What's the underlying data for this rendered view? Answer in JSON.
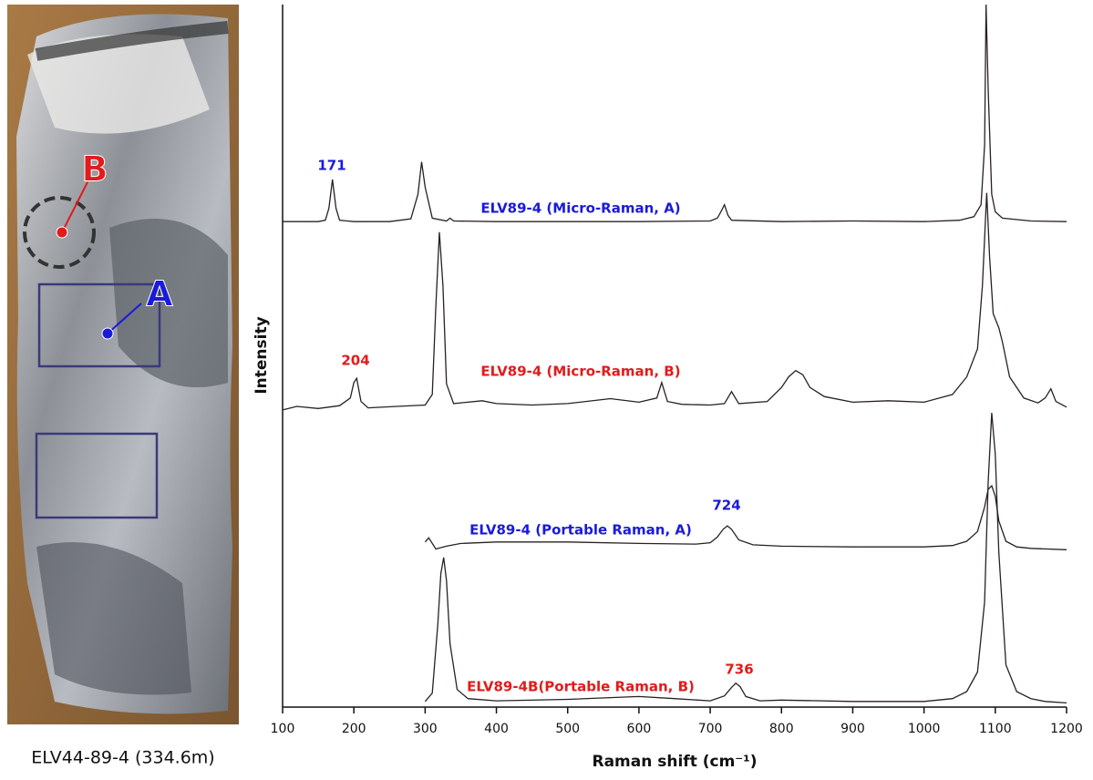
{
  "photo": {
    "caption": "ELV44-89-4 (334.6m)",
    "markers": [
      "A",
      "B"
    ]
  },
  "chart_data": {
    "type": "line",
    "xlabel": "Raman shift (cm⁻¹)",
    "ylabel": "Intensity",
    "xlim": [
      100,
      1200
    ],
    "xticks": [
      100,
      200,
      300,
      400,
      500,
      600,
      700,
      800,
      900,
      1000,
      1100,
      1200
    ],
    "ylim": [
      0,
      100
    ],
    "series": [
      {
        "name": "ELV89-4 (Micro-Raman, A)",
        "color": "#2a2020",
        "label_color": "#1a1adb",
        "x": [
          100,
          150,
          160,
          165,
          170,
          175,
          180,
          200,
          250,
          280,
          290,
          295,
          300,
          310,
          330,
          335,
          340,
          400,
          500,
          600,
          700,
          710,
          715,
          720,
          725,
          730,
          800,
          900,
          1000,
          1050,
          1070,
          1080,
          1085,
          1087,
          1090,
          1095,
          1100,
          1110,
          1150,
          1200
        ],
        "values": [
          69.1,
          69.1,
          69.3,
          71,
          75.1,
          71,
          69.3,
          69.1,
          69.1,
          69.5,
          73,
          77.6,
          74,
          69.6,
          69.2,
          69.6,
          69.2,
          69.1,
          69.1,
          69.1,
          69.2,
          69.6,
          70.5,
          71.5,
          70,
          69.3,
          69.1,
          69.2,
          69.1,
          69.3,
          69.8,
          71.5,
          80,
          100,
          88,
          73,
          70.5,
          69.6,
          69.2,
          69.1
        ]
      },
      {
        "name": "ELV89-4 (Micro-Raman, B)",
        "color": "#2a2020",
        "label_color": "#e21b1b",
        "x": [
          100,
          120,
          150,
          180,
          195,
          200,
          204,
          210,
          220,
          260,
          300,
          310,
          315,
          320,
          325,
          330,
          340,
          380,
          400,
          450,
          500,
          560,
          600,
          625,
          632,
          640,
          660,
          700,
          720,
          730,
          740,
          780,
          800,
          810,
          820,
          830,
          840,
          860,
          900,
          950,
          1000,
          1040,
          1060,
          1075,
          1082,
          1088,
          1092,
          1097,
          1105,
          1110,
          1120,
          1140,
          1160,
          1170,
          1178,
          1185,
          1200
        ],
        "values": [
          42.3,
          42.8,
          42.5,
          42.9,
          44,
          46.2,
          46.8,
          43.5,
          42.6,
          42.8,
          43,
          44.5,
          57,
          67.6,
          60,
          46,
          43.2,
          43.6,
          43.2,
          43,
          43.2,
          43.9,
          43.4,
          44,
          46.2,
          43.5,
          43.1,
          43,
          43.2,
          44.9,
          43.2,
          43.5,
          45.5,
          47,
          47.9,
          47.3,
          45.5,
          44.2,
          43.4,
          43.6,
          43.4,
          44.5,
          47,
          51,
          60,
          73.2,
          64,
          56,
          54,
          52,
          47,
          44,
          43.3,
          44,
          45.3,
          43.5,
          42.7
        ]
      },
      {
        "name": "ELV89-4 (Portable Raman, A)",
        "color": "#2a2020",
        "label_color": "#1a1adb",
        "x": [
          300,
          305,
          315,
          330,
          350,
          400,
          500,
          600,
          680,
          700,
          710,
          718,
          724,
          730,
          740,
          760,
          800,
          900,
          1000,
          1040,
          1060,
          1075,
          1085,
          1090,
          1095,
          1100,
          1105,
          1115,
          1130,
          1150,
          1200
        ],
        "values": [
          23.5,
          24.1,
          22.5,
          22.9,
          23.3,
          23.5,
          23.5,
          23.3,
          23.2,
          23.4,
          24.2,
          25.3,
          25.8,
          25.3,
          23.8,
          23.1,
          22.9,
          22.8,
          22.8,
          23,
          23.6,
          25,
          28.5,
          31,
          31.5,
          30,
          26.5,
          23.6,
          22.8,
          22.6,
          22.4
        ]
      },
      {
        "name": "ELV89-4B(Portable Raman, B)",
        "color": "#2a2020",
        "label_color": "#e21b1b",
        "x": [
          300,
          310,
          318,
          322,
          326,
          330,
          335,
          345,
          360,
          400,
          500,
          600,
          650,
          700,
          720,
          730,
          736,
          742,
          750,
          770,
          800,
          900,
          1000,
          1040,
          1060,
          1075,
          1085,
          1090,
          1095,
          1100,
          1105,
          1115,
          1130,
          1150,
          1170,
          1200
        ],
        "values": [
          0.8,
          2,
          12,
          19,
          21.3,
          18,
          9,
          2.5,
          1.2,
          0.9,
          1.1,
          1.5,
          1.2,
          0.9,
          1.6,
          2.8,
          3.4,
          2.9,
          1.5,
          0.9,
          1,
          0.8,
          0.8,
          1.2,
          2.2,
          5,
          15,
          32,
          41.9,
          36,
          22,
          6,
          2.2,
          1.2,
          0.8,
          0.6
        ]
      }
    ],
    "annotations": [
      {
        "text": "171",
        "color": "#1a1adb"
      },
      {
        "text": "204",
        "color": "#e21b1b"
      },
      {
        "text": "724",
        "color": "#1a1adb"
      },
      {
        "text": "736",
        "color": "#e21b1b"
      }
    ]
  }
}
